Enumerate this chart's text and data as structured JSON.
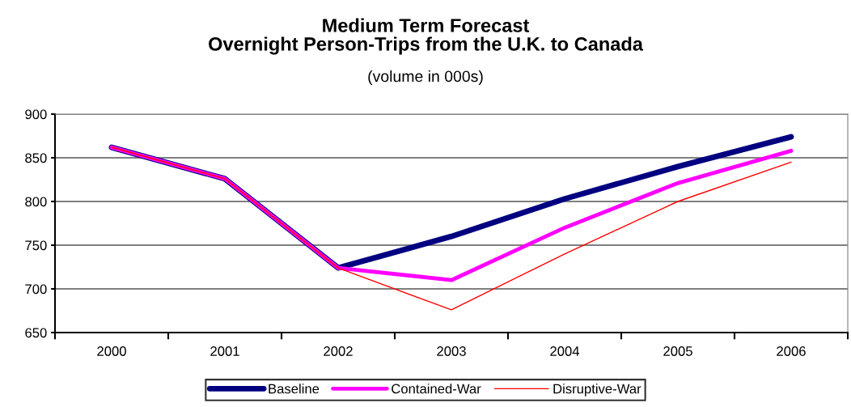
{
  "chart_data": {
    "type": "line",
    "title": "Medium Term Forecast\nOvernight Person-Trips from the U.K. to Canada",
    "subtitle": "(volume in 000s)",
    "categories": [
      "2000",
      "2001",
      "2002",
      "2003",
      "2004",
      "2005",
      "2006"
    ],
    "series": [
      {
        "name": "Baseline",
        "color": "#000080",
        "values": [
          862,
          826,
          724,
          760,
          803,
          840,
          874
        ]
      },
      {
        "name": "Contained-War",
        "color": "#ff00ff",
        "values": [
          862,
          826,
          724,
          710,
          770,
          821,
          858
        ]
      },
      {
        "name": "Disruptive-War",
        "color": "#ff0000",
        "values": [
          862,
          826,
          724,
          676,
          740,
          800,
          845
        ]
      }
    ],
    "ylim": [
      650,
      900
    ],
    "yticks": [
      650,
      700,
      750,
      800,
      850,
      900
    ],
    "grid": "y",
    "legend": "bottom",
    "marker": "none",
    "line_style": "solid"
  }
}
